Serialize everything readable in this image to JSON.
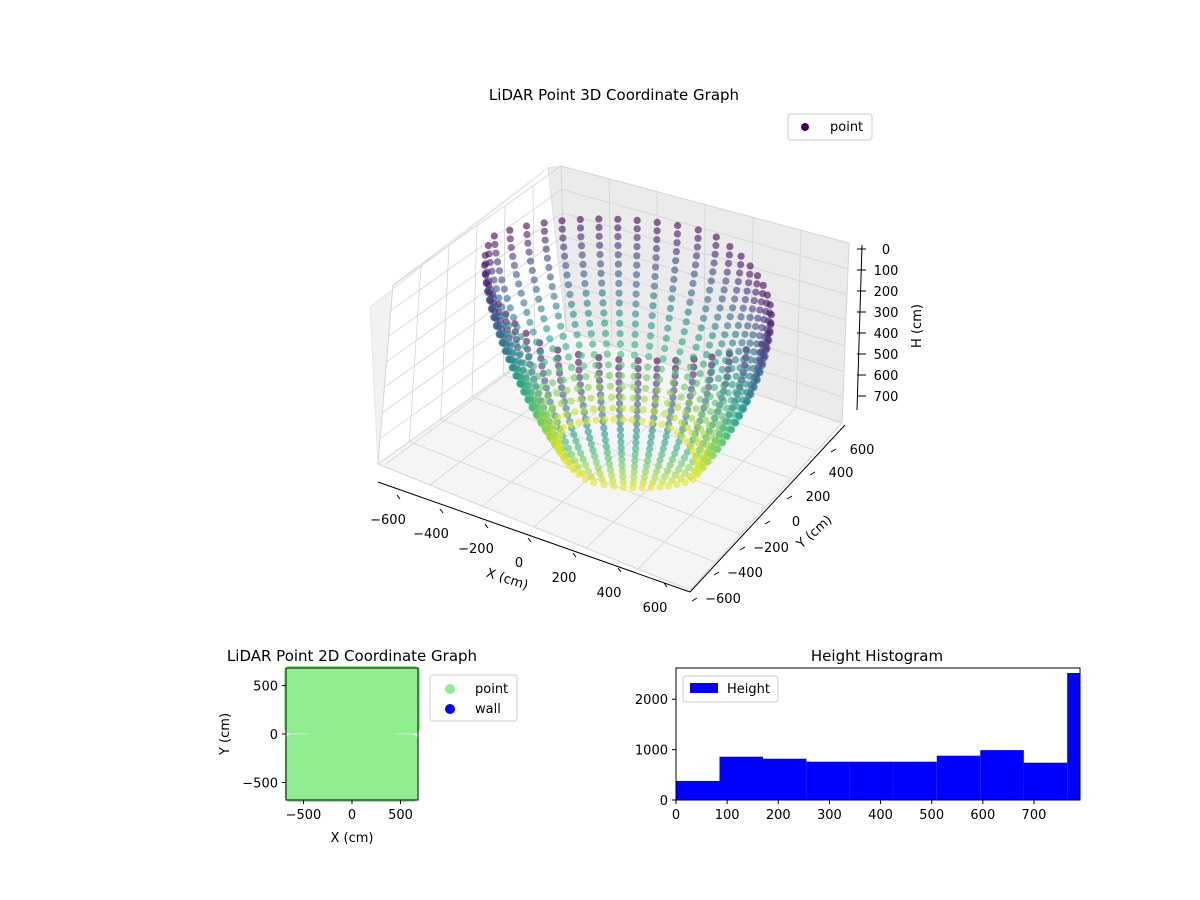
{
  "chart_data": [
    {
      "type": "scatter",
      "projection": "3d",
      "title": "LiDAR Point 3D Coordinate Graph",
      "xlabel": "X (cm)",
      "ylabel": "Y (cm)",
      "zlabel": "H (cm)",
      "xlim": [
        -700,
        700
      ],
      "ylim": [
        -700,
        700
      ],
      "zlim": [
        790,
        0
      ],
      "z_inverted": true,
      "xticks": [
        "−600",
        "−400",
        "−200",
        "0",
        "200",
        "400",
        "600"
      ],
      "yticks": [
        "−600",
        "−400",
        "−200",
        "0",
        "200",
        "400",
        "600"
      ],
      "zticks": [
        "0",
        "100",
        "200",
        "300",
        "400",
        "500",
        "600",
        "700"
      ],
      "colormap": "viridis",
      "legend": {
        "placement": "top-right",
        "entries": [
          {
            "label": "point",
            "color": "#440154"
          }
        ]
      },
      "grid": true,
      "shape": "ring of vertical wall strips, radius ~600 cm, height 0–790 cm"
    },
    {
      "type": "scatter",
      "title": "LiDAR Point 2D Coordinate Graph",
      "xlabel": "X (cm)",
      "ylabel": "Y (cm)",
      "xlim": [
        -680,
        680
      ],
      "ylim": [
        -680,
        680
      ],
      "xticks": [
        -500,
        0,
        500
      ],
      "yticks": [
        -500,
        0,
        500
      ],
      "legend": {
        "placement": "outside-right",
        "entries": [
          {
            "label": "point",
            "color": "#90ee90"
          },
          {
            "label": "wall",
            "color": "#0000ff"
          }
        ]
      },
      "grid": false
    },
    {
      "type": "bar",
      "subtype": "histogram",
      "title": "Height Histogram",
      "xlim": [
        0,
        790
      ],
      "ylim": [
        0,
        2620
      ],
      "xticks": [
        0,
        100,
        200,
        300,
        400,
        500,
        600,
        700
      ],
      "yticks": [
        0,
        1000,
        2000
      ],
      "bin_edges": [
        0,
        85,
        170,
        255,
        340,
        425,
        510,
        595,
        680,
        765,
        790
      ],
      "series": [
        {
          "name": "Height",
          "color": "#0000ff",
          "values": [
            380,
            860,
            820,
            760,
            760,
            760,
            880,
            990,
            740,
            2520
          ]
        }
      ],
      "legend": {
        "placement": "upper-left"
      },
      "grid": false
    }
  ]
}
